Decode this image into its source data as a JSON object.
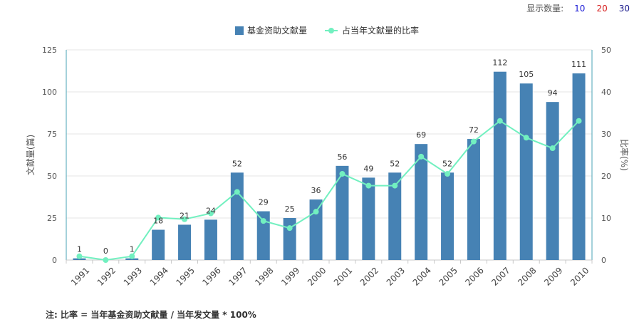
{
  "display_count": {
    "label": "显示数量:",
    "options": [
      {
        "value": "10",
        "color": "#1a1ad6"
      },
      {
        "value": "20",
        "color": "#d61a1a"
      },
      {
        "value": "30",
        "color": "#1a1a8c"
      }
    ]
  },
  "note": "注: 比率 = 当年基金资助文献量 / 当年发文量 * 100%",
  "chart_data": {
    "type": "bar+line",
    "categories": [
      "1991",
      "1992",
      "1993",
      "1994",
      "1995",
      "1996",
      "1997",
      "1998",
      "1999",
      "2000",
      "2001",
      "2002",
      "2003",
      "2004",
      "2005",
      "2006",
      "2007",
      "2008",
      "2009",
      "2010"
    ],
    "series": [
      {
        "name": "基金资助文献量",
        "type": "bar",
        "axis": "left",
        "color": "#4682b4",
        "values": [
          1,
          0,
          1,
          18,
          21,
          24,
          52,
          29,
          25,
          36,
          56,
          49,
          52,
          69,
          52,
          72,
          112,
          105,
          94,
          111
        ]
      },
      {
        "name": "占当年文献量的比率",
        "type": "line",
        "axis": "right",
        "color": "#72f0c0",
        "values": [
          0.9,
          0,
          0.9,
          10.1,
          9.7,
          11.1,
          16.2,
          9.3,
          7.6,
          11.5,
          20.5,
          17.7,
          17.7,
          24.6,
          20.5,
          28.2,
          33.1,
          29.1,
          26.6,
          33.1
        ]
      }
    ],
    "yleft": {
      "label": "文献量(篇)",
      "min": 0,
      "max": 125,
      "ticks": [
        0,
        25,
        50,
        75,
        100,
        125
      ]
    },
    "yright": {
      "label": "比率(%)",
      "min": 0,
      "max": 50,
      "ticks": [
        0,
        10,
        20,
        30,
        40,
        50
      ]
    },
    "legend_position": "top-center",
    "grid": true
  }
}
